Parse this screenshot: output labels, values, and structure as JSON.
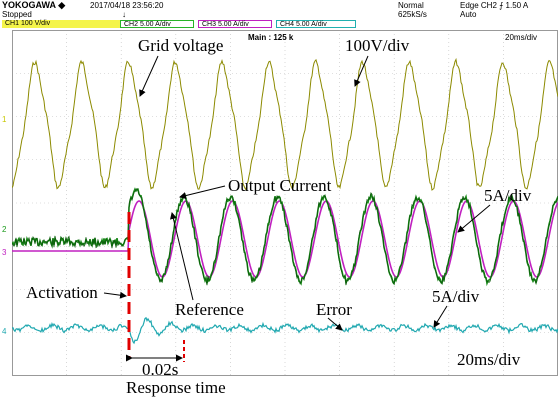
{
  "header": {
    "brand": "YOKOGAWA",
    "timestamp": "2017/04/18 23:56:20",
    "status": "Stopped",
    "trigger_marker": "↓",
    "acq_mode": "Normal",
    "sample_rate": "625kS/s",
    "trigger": "Edge CH2 ⨍ 1.50 A",
    "trigger_mode": "Auto"
  },
  "channels": [
    {
      "label": "CH1  100 V/div",
      "color": "#f4f44a"
    },
    {
      "label": "CH2  5.00 A/div",
      "color": "#28b428"
    },
    {
      "label": "CH3  5.00 A/div",
      "color": "#c020c0"
    },
    {
      "label": "CH4  5.00 A/div",
      "color": "#20b0b0"
    }
  ],
  "screen": {
    "main_length": "Main : 125 k",
    "timebase_readout": "20ms/div"
  },
  "annotations": {
    "grid_voltage": "Grid voltage",
    "voltage_scale": "100V/div",
    "output_current": "Output Current",
    "current_scale": "5A/div",
    "activation": "Activation",
    "reference": "Reference",
    "error": "Error",
    "error_scale": "5A/div",
    "delay": "0.02s",
    "timebase": "20ms/div",
    "response_time": "Response time"
  },
  "colors": {
    "grid_voltage": "#8c8a00",
    "output_current": "#1a8a1a",
    "reference": "#c020c0",
    "error": "#20a8b0",
    "activation_marker": "#e00000"
  }
}
